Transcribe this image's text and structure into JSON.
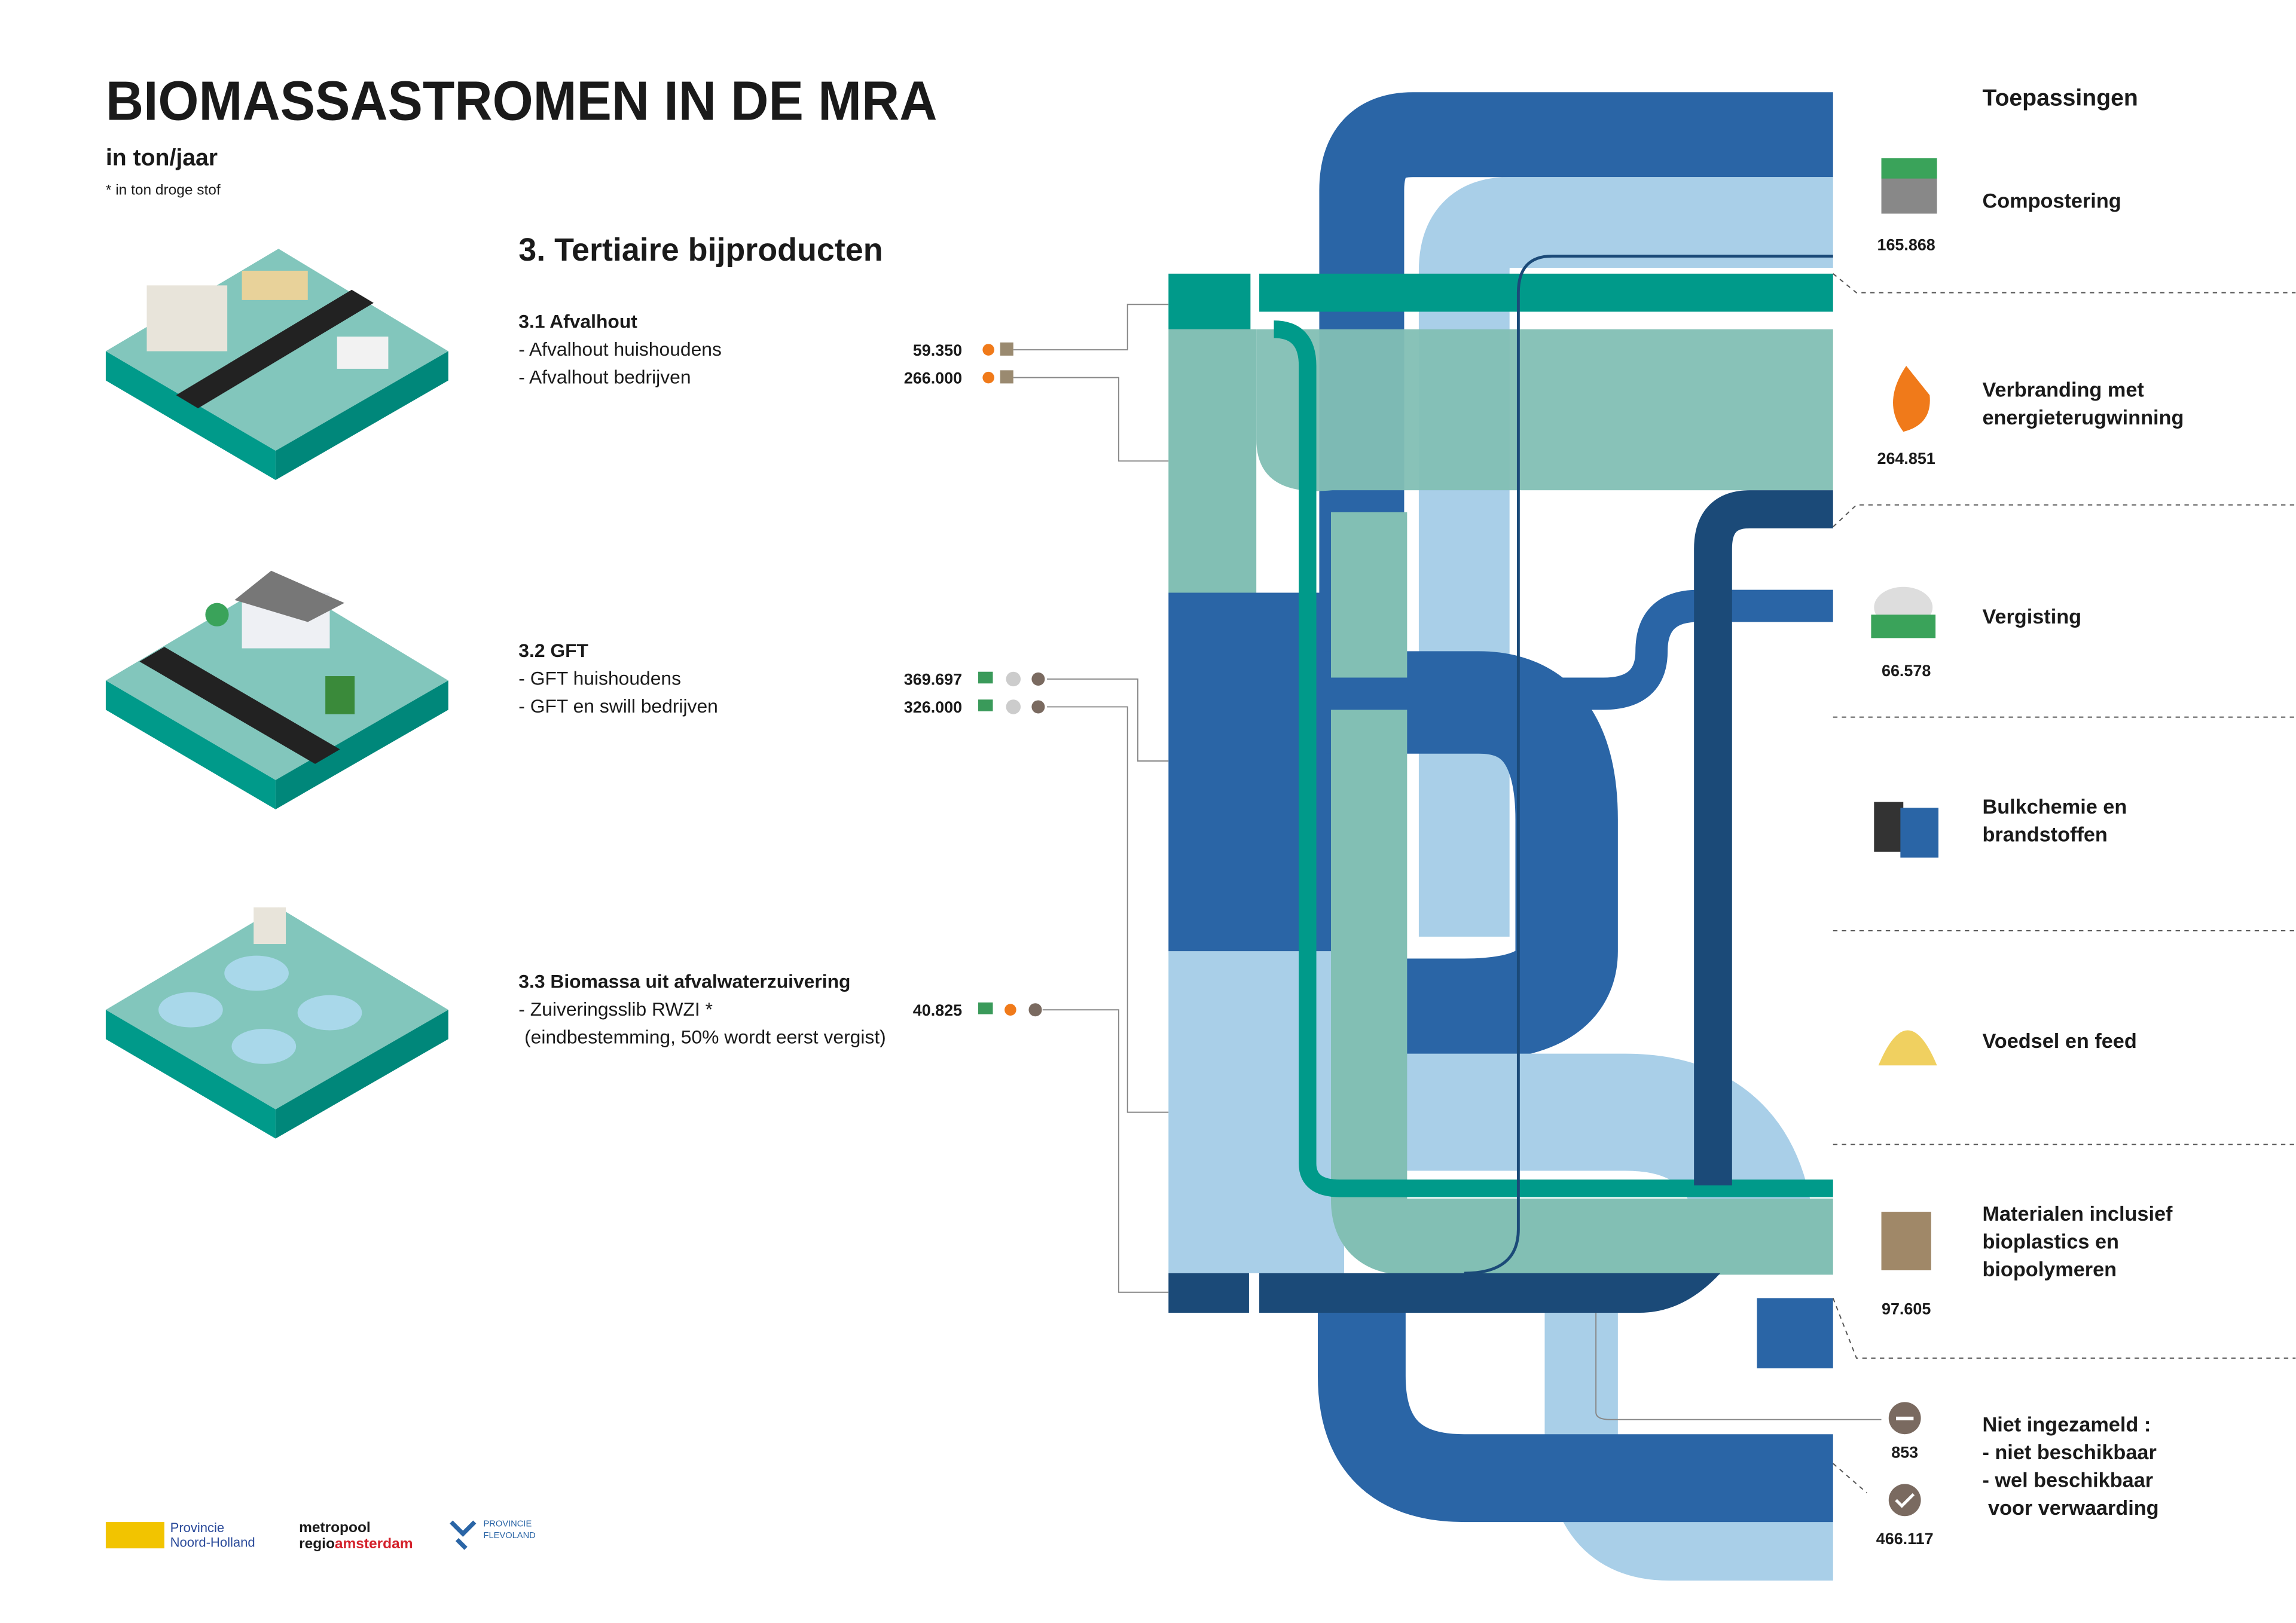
{
  "header": {
    "title": "BIOMASSASTROMEN IN DE MRA",
    "unit": "in ton/jaar",
    "note": "* in ton droge stof"
  },
  "section": {
    "title": "3. Tertiaire bijproducten",
    "groups": [
      {
        "title": "3.1 Afvalhout",
        "items": [
          {
            "label": "- Afvalhout huishoudens",
            "value": "59.350"
          },
          {
            "label": "- Afvalhout bedrijven",
            "value": "266.000"
          }
        ]
      },
      {
        "title": "3.2 GFT",
        "items": [
          {
            "label": "- GFT huishoudens",
            "value": "369.697"
          },
          {
            "label": "- GFT en swill bedrijven",
            "value": "326.000"
          }
        ]
      },
      {
        "title": "3.3 Biomassa uit afvalwaterzuivering",
        "items": [
          {
            "label": "- Zuiveringsslib RWZI *",
            "value": "40.825"
          }
        ],
        "note": "(eindbestemming, 50% wordt eerst vergist)"
      }
    ]
  },
  "applications": {
    "title": "Toepassingen",
    "items": [
      {
        "label": [
          "Compostering"
        ],
        "value": "165.868"
      },
      {
        "label": [
          "Verbranding met",
          "energieterugwinning"
        ],
        "value": "264.851"
      },
      {
        "label": [
          "Vergisting"
        ],
        "value": "66.578"
      },
      {
        "label": [
          "Bulkchemie en",
          "brandstoffen"
        ]
      },
      {
        "label": [
          "Voedsel en feed"
        ]
      },
      {
        "label": [
          "Materialen inclusief",
          "bioplastics en",
          "biopolymeren"
        ],
        "value": "97.605"
      },
      {
        "label": [
          "Niet ingezameld :",
          "- niet beschikbaar",
          "- wel beschikbaar",
          " voor verwaarding"
        ],
        "values": [
          "853",
          "466.117"
        ]
      }
    ]
  },
  "logos": {
    "nh": [
      "Provincie",
      "Noord-Holland"
    ],
    "mra": {
      "line1": "metropool",
      "line2a": "regio",
      "line2b": "amsterdam"
    },
    "fl": [
      "PROVINCIE",
      "FLEVOLAND"
    ]
  }
}
